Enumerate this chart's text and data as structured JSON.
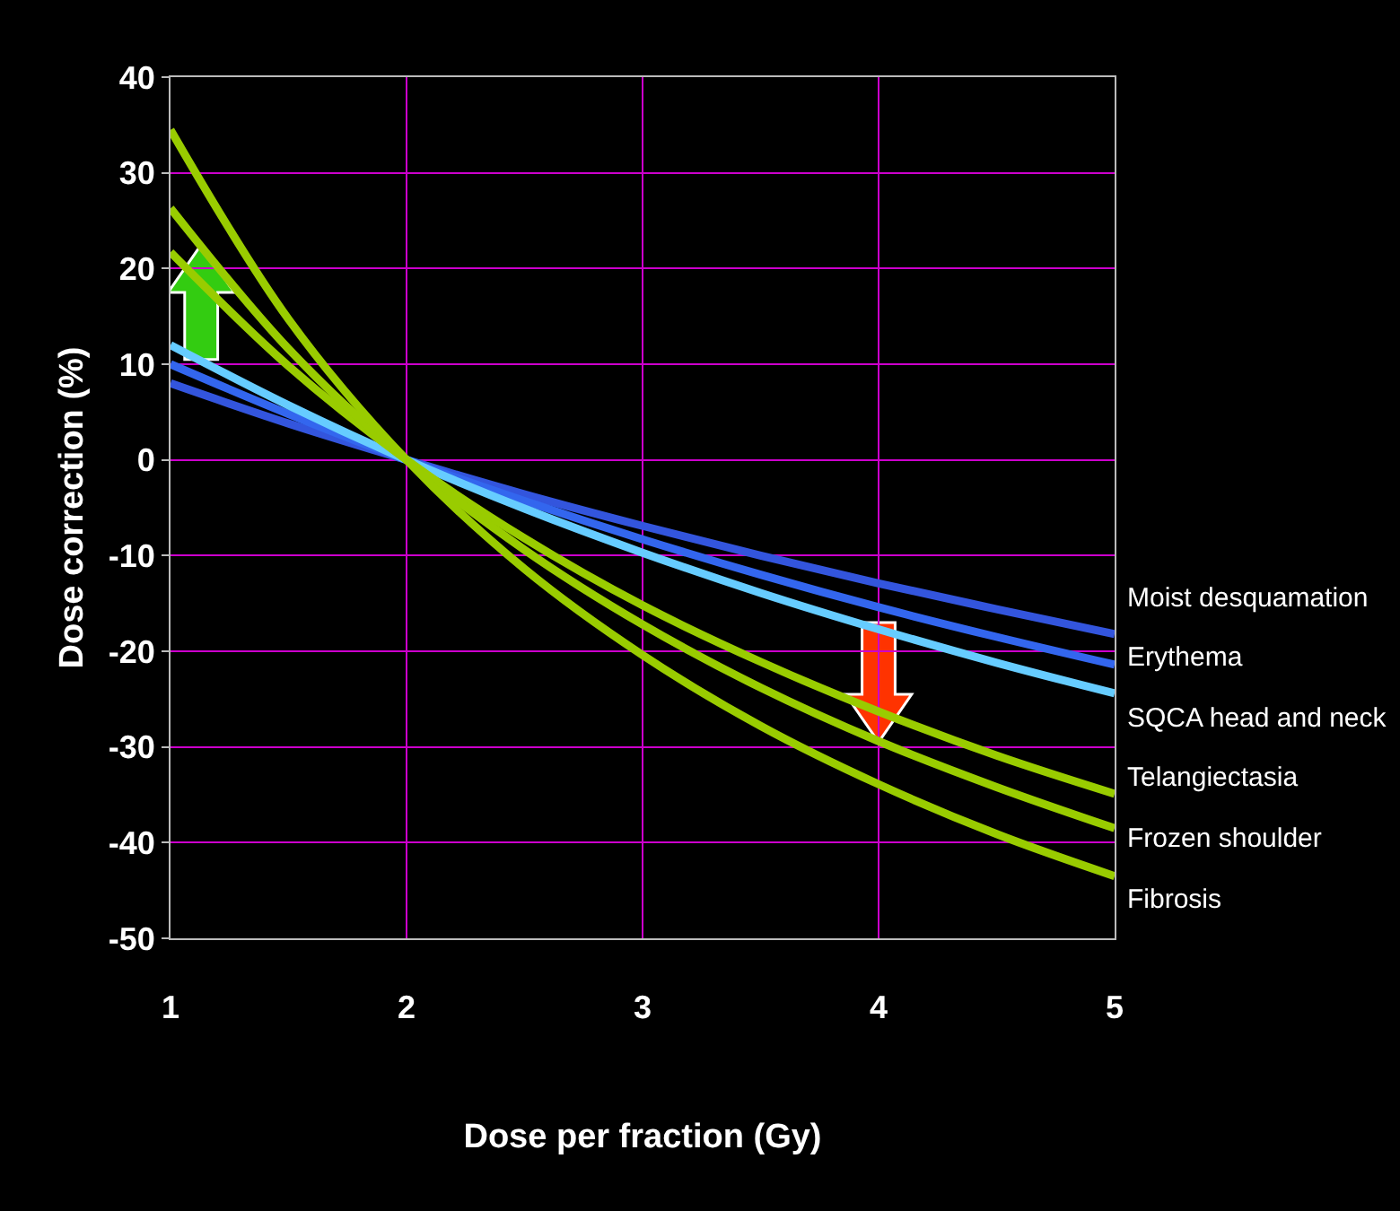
{
  "chart_data": {
    "type": "line",
    "xlabel": "Dose per fraction (Gy)",
    "ylabel": "Dose correction (%)",
    "x": [
      1,
      1.5,
      2,
      2.5,
      3,
      3.5,
      4,
      4.5,
      5
    ],
    "series": [
      {
        "name": "Moist desquamation",
        "color": "#3355dd",
        "values": [
          8.0,
          3.8,
          0,
          -3.6,
          -6.9,
          -10.0,
          -12.9,
          -15.6,
          -18.2
        ]
      },
      {
        "name": "Erythema",
        "color": "#3366ee",
        "values": [
          10.0,
          4.8,
          0,
          -4.3,
          -8.3,
          -12.0,
          -15.4,
          -18.5,
          -21.4
        ]
      },
      {
        "name": "SQCA head and neck",
        "color": "#66ccff",
        "values": [
          12.0,
          5.7,
          0,
          -5.1,
          -9.7,
          -13.9,
          -17.7,
          -21.2,
          -24.4
        ]
      },
      {
        "name": "Telangiectasia",
        "color": "#99cc00",
        "values": [
          21.7,
          9.8,
          0,
          -8.2,
          -15.2,
          -21.1,
          -26.3,
          -30.9,
          -34.9
        ]
      },
      {
        "name": "Frozen shoulder",
        "color": "#99cc00",
        "values": [
          26.3,
          11.6,
          0,
          -9.4,
          -17.2,
          -23.8,
          -29.4,
          -34.2,
          -38.5
        ]
      },
      {
        "name": "Fibrosis",
        "color": "#99cc00",
        "values": [
          34.5,
          14.7,
          0,
          -11.4,
          -20.4,
          -27.8,
          -33.9,
          -39.1,
          -43.5
        ]
      }
    ],
    "xlim": [
      1,
      5
    ],
    "xticks": [
      1,
      2,
      3,
      4,
      5
    ],
    "ylim": [
      -50,
      40
    ],
    "yticks": [
      -50,
      -40,
      -30,
      -20,
      -10,
      0,
      10,
      20,
      30,
      40
    ],
    "grid": true,
    "legend": false,
    "marker": "none",
    "line_style": "solid"
  }
}
